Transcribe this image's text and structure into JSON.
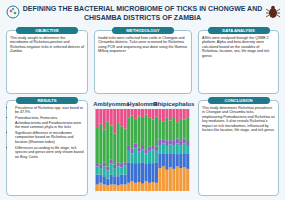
{
  "title": "DEFINING THE BACTERIAL MICROBIOME OF TICKS IN CHONGWE AND CHISAMBA DISTRICTS OF ZAMBIA",
  "sections": [
    {
      "heading": "OBJECTIVE",
      "text": "This study sought to determine the microbiome of Rickettsia-positive and Rickettsia-negative ticks in selected districts of Zambia"
    },
    {
      "heading": "METHODOLOGY",
      "text": "Ixodid ticks were collected from cattle in Chongwe and Chisamba districts. Ticks were screened for Rickettsia using PCR and sequencing was done using the Illumina MiSeq sequencer"
    },
    {
      "heading": "DATA ANALYSIS",
      "text": "ASVs were analysed through the QIIME 2 platform. Alpha and beta diversity were calculated based on the variables of Rickettsia, location, sex, life stage and tick genus"
    },
    {
      "heading": "RESULTS",
      "items": [
        "Prevalence of Rickettsia spp. was found to be 47.9%",
        "Proteobacteria, Firmicutes, Actinobacteriota and Fusobacteriota were the most common phyla in the ticks",
        "Significant difference in microbiome composition based on Rickettsia and location (Shannon index)",
        "Differences according to life stage, tick species and genus were only shown based on Bray Curtis"
      ]
    },
    {
      "heading": "CONCLUSION",
      "text": "This study determines Rickettsia prevalence in Chongwe and Chisamba ticks, emphasizing Proteobacteria and Rickettsia as key mediators. It also reveals Rickettsia's impact on tick microbiomes, influenced by factors like location, life stage, and tick genus"
    }
  ],
  "chart_data": {
    "type": "bar",
    "stacked": true,
    "tick_labels": "x",
    "categories": [
      null,
      null,
      null,
      null,
      "Amblyomma",
      null,
      null,
      null,
      null,
      null,
      null,
      null,
      null,
      "Hyalomma",
      null,
      null,
      null,
      null,
      null,
      null,
      null,
      null,
      "Rhipicephalus",
      null,
      null,
      null,
      null
    ],
    "ylim": [
      0,
      100
    ],
    "series": [
      {
        "color": "#f29b38",
        "values": [
          8,
          10,
          8,
          7,
          8,
          8,
          7,
          8,
          8,
          10,
          12,
          10,
          11,
          9,
          12,
          10,
          11,
          10,
          28,
          30,
          26,
          29,
          27,
          30,
          28,
          29,
          27
        ]
      },
      {
        "color": "#3b6fd1",
        "values": [
          12,
          10,
          10,
          8,
          12,
          10,
          11,
          12,
          12,
          25,
          22,
          24,
          23,
          26,
          21,
          24,
          23,
          25,
          18,
          16,
          20,
          17,
          19,
          15,
          18,
          17,
          19
        ]
      },
      {
        "color": "#2bb3a5",
        "values": [
          10,
          8,
          12,
          10,
          14,
          10,
          12,
          9,
          11,
          15,
          12,
          18,
          14,
          16,
          13,
          15,
          17,
          14,
          10,
          12,
          9,
          11,
          10,
          13,
          10,
          12,
          9
        ]
      },
      {
        "color": "#8e5fbf",
        "values": [
          4,
          4,
          5,
          5,
          4,
          4,
          5,
          4,
          4,
          5,
          6,
          6,
          5,
          5,
          5,
          5,
          5,
          5,
          7,
          5,
          7,
          5,
          6,
          6,
          6,
          6,
          6
        ]
      },
      {
        "color": "#3fae49",
        "values": [
          44,
          50,
          40,
          55,
          42,
          38,
          48,
          46,
          41,
          35,
          40,
          30,
          38,
          33,
          42,
          36,
          31,
          37,
          25,
          22,
          28,
          24,
          27,
          20,
          26,
          23,
          29
        ]
      },
      {
        "color": "#e8508a",
        "values": [
          22,
          18,
          25,
          15,
          20,
          30,
          17,
          21,
          24,
          10,
          8,
          12,
          9,
          11,
          7,
          10,
          13,
          9,
          12,
          15,
          10,
          14,
          11,
          16,
          12,
          13,
          10
        ]
      }
    ]
  }
}
